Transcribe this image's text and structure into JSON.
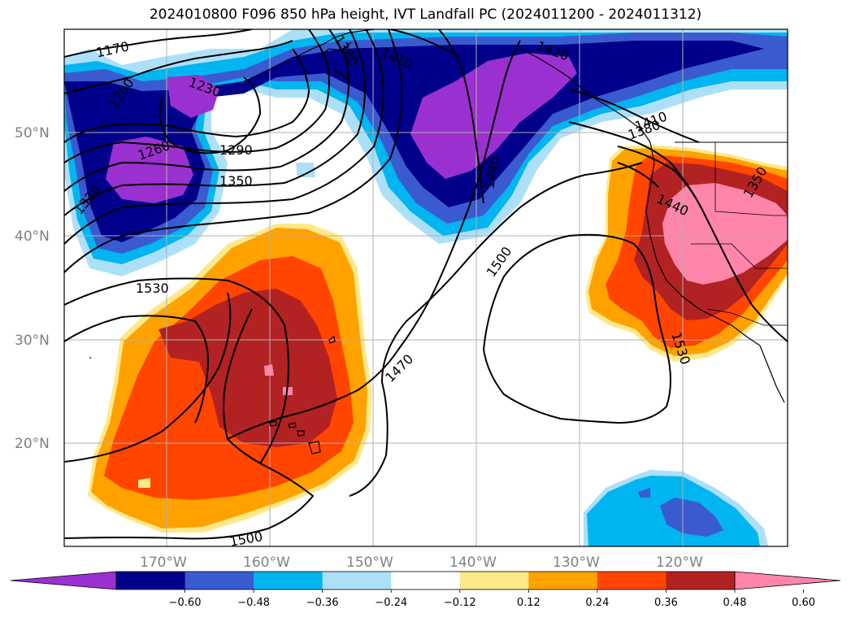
{
  "title": "2024010800 F096 850 hPa height, IVT Landfall PC (2024011200 - 2024011312)",
  "lat_labels": [
    "50°N",
    "40°N",
    "30°N",
    "20°N"
  ],
  "lon_labels": [
    "170°W",
    "160°W",
    "150°W",
    "140°W",
    "130°W",
    "120°W"
  ],
  "contour_labels": [
    "1170",
    "1200",
    "1230",
    "1260",
    "1290",
    "1320",
    "1350",
    "1380",
    "1410",
    "1420",
    "1440",
    "1440",
    "1500",
    "1530",
    "1470",
    "1530",
    "1500",
    "1410",
    "1380",
    "1350"
  ],
  "colorbar": {
    "colors": [
      "#9b30d0",
      "#00008b",
      "#3a5bcf",
      "#00b5f0",
      "#ace0f8",
      "#ffffff",
      "#fde98a",
      "#ffa200",
      "#ff4500",
      "#b22222",
      "#ff85aa"
    ],
    "ticks": [
      "−0.60",
      "−0.48",
      "−0.36",
      "−0.24",
      "−0.12",
      "0.12",
      "0.24",
      "0.36",
      "0.48",
      "0.60"
    ]
  },
  "colors": {
    "positive_core": "#b22222",
    "negative_core": "#9b30d0",
    "grid": "#b0b0b0"
  }
}
